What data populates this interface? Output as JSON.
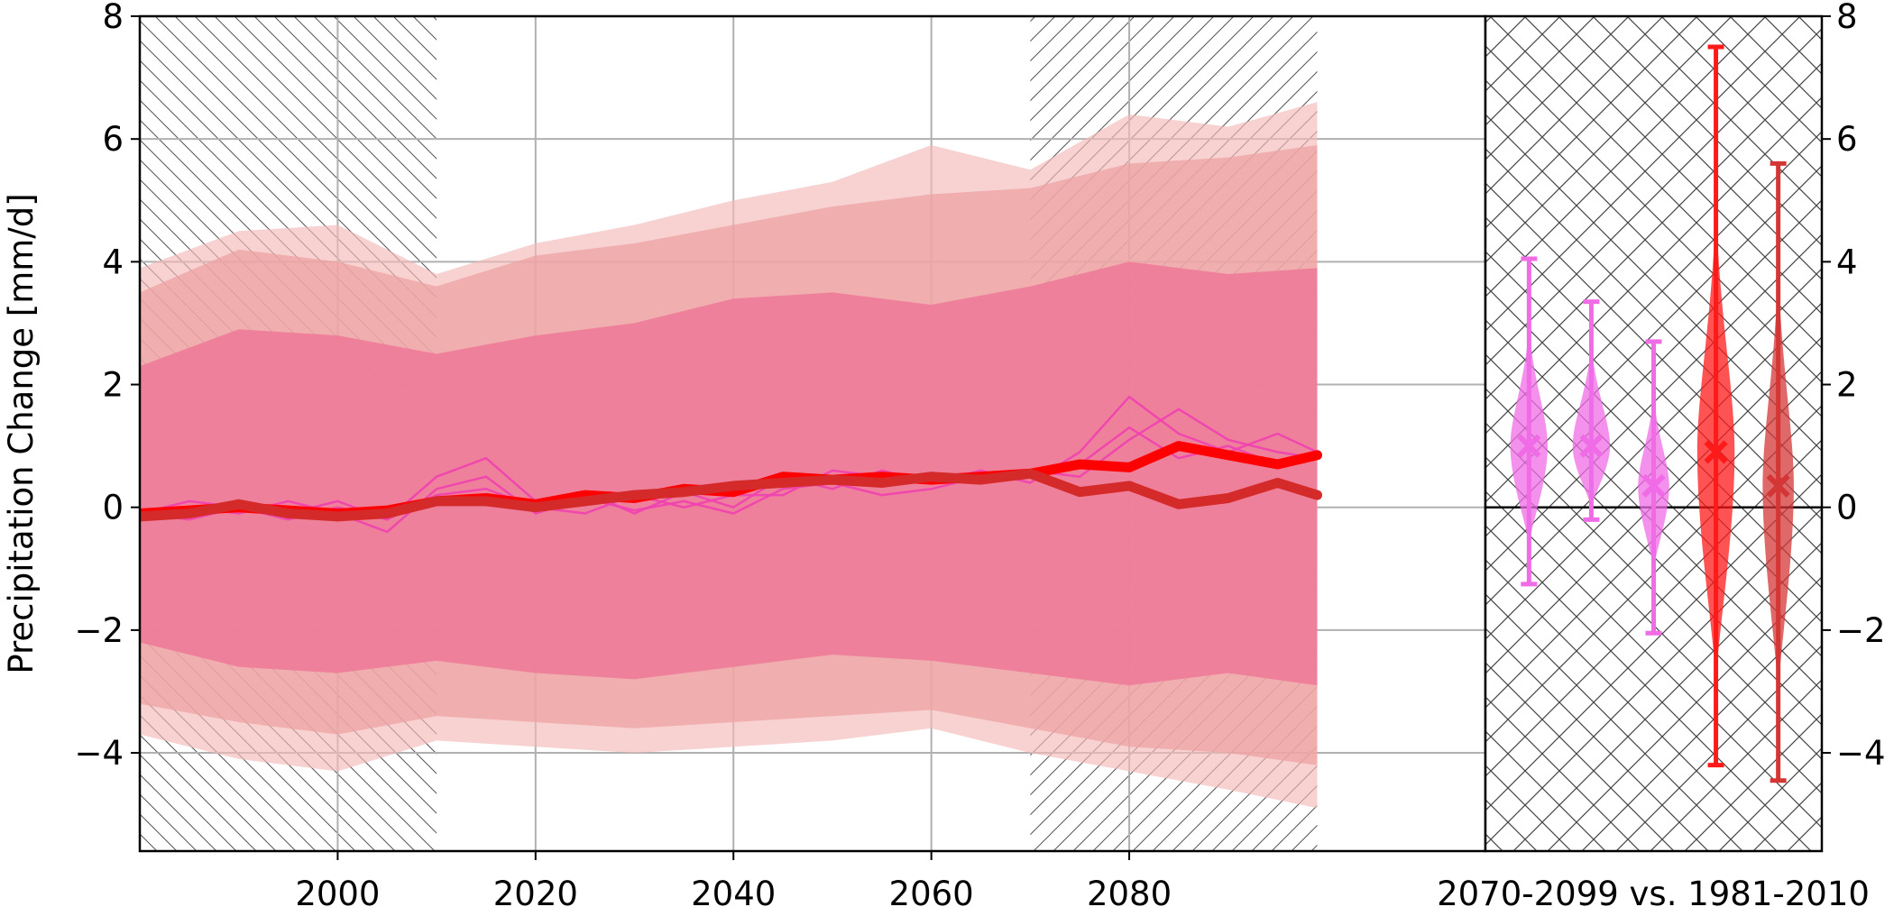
{
  "chart_data": [
    {
      "type": "line",
      "title": "",
      "xlabel": "",
      "ylabel": "Precipitation Change [mm/d]",
      "xlim": [
        1980,
        2116
      ],
      "ylim": [
        -5.6,
        8
      ],
      "xticks": [
        2000,
        2020,
        2040,
        2060,
        2080
      ],
      "xtick_labels": [
        "2000",
        "2020",
        "2040",
        "2060",
        "2080"
      ],
      "yticks": [
        -4,
        -2,
        0,
        2,
        4,
        6,
        8
      ],
      "ytick_labels": [
        "−4",
        "−2",
        "0",
        "2",
        "4",
        "6",
        "8"
      ],
      "grid": true,
      "hatched_periods": [
        [
          1980,
          2010
        ],
        [
          2070,
          2099
        ]
      ],
      "colors": {
        "band_outer": "#f4b8b8",
        "band_mid": "#eea0a0",
        "band_inner": "#ee7898",
        "band_magenta": "#f48ac8",
        "mean_red": "#ff0000",
        "mean_darkred": "#d42a2a",
        "thin_magenta": "#f040b0"
      },
      "series": [
        {
          "name": "Model spread (outer)",
          "kind": "band",
          "color_key": "band_outer",
          "opacity": 0.65,
          "x": [
            1980,
            1990,
            2000,
            2010,
            2020,
            2030,
            2040,
            2050,
            2060,
            2070,
            2080,
            2090,
            2099
          ],
          "upper": [
            3.9,
            4.5,
            4.6,
            3.8,
            4.3,
            4.6,
            5.0,
            5.3,
            5.9,
            5.5,
            6.4,
            6.2,
            6.6
          ],
          "lower": [
            -3.7,
            -4.1,
            -4.3,
            -3.8,
            -3.9,
            -4.0,
            -3.9,
            -3.8,
            -3.6,
            -4.0,
            -4.3,
            -4.6,
            -4.9
          ]
        },
        {
          "name": "Model spread (middle)",
          "kind": "band",
          "color_key": "band_mid",
          "opacity": 0.7,
          "x": [
            1980,
            1990,
            2000,
            2010,
            2020,
            2030,
            2040,
            2050,
            2060,
            2070,
            2080,
            2090,
            2099
          ],
          "upper": [
            3.5,
            4.2,
            4.0,
            3.6,
            4.1,
            4.3,
            4.6,
            4.9,
            5.1,
            5.2,
            5.6,
            5.7,
            5.9
          ],
          "lower": [
            -3.2,
            -3.5,
            -3.7,
            -3.4,
            -3.5,
            -3.6,
            -3.5,
            -3.4,
            -3.3,
            -3.6,
            -3.9,
            -4.0,
            -4.2
          ]
        },
        {
          "name": "Model spread (inner)",
          "kind": "band",
          "color_key": "band_inner",
          "opacity": 0.85,
          "x": [
            1980,
            1990,
            2000,
            2010,
            2020,
            2030,
            2040,
            2050,
            2060,
            2070,
            2080,
            2090,
            2099
          ],
          "upper": [
            2.3,
            2.9,
            2.8,
            2.5,
            2.8,
            3.0,
            3.4,
            3.5,
            3.3,
            3.6,
            4.0,
            3.8,
            3.9
          ],
          "lower": [
            -2.2,
            -2.6,
            -2.7,
            -2.5,
            -2.7,
            -2.8,
            -2.6,
            -2.4,
            -2.5,
            -2.7,
            -2.9,
            -2.7,
            -2.9
          ]
        },
        {
          "name": "Mean (red)",
          "kind": "line",
          "color_key": "mean_red",
          "width": 11,
          "x": [
            1980,
            1985,
            1990,
            1995,
            2000,
            2005,
            2010,
            2015,
            2020,
            2025,
            2030,
            2035,
            2040,
            2045,
            2050,
            2055,
            2060,
            2065,
            2070,
            2075,
            2080,
            2085,
            2090,
            2095,
            2099
          ],
          "y": [
            -0.1,
            -0.05,
            0.0,
            -0.05,
            -0.1,
            -0.05,
            0.1,
            0.15,
            0.05,
            0.2,
            0.15,
            0.3,
            0.25,
            0.5,
            0.45,
            0.5,
            0.45,
            0.5,
            0.55,
            0.7,
            0.65,
            1.0,
            0.85,
            0.7,
            0.85
          ]
        },
        {
          "name": "Mean (dark red)",
          "kind": "line",
          "color_key": "mean_darkred",
          "width": 11,
          "x": [
            1980,
            1985,
            1990,
            1995,
            2000,
            2005,
            2010,
            2015,
            2020,
            2025,
            2030,
            2035,
            2040,
            2045,
            2050,
            2055,
            2060,
            2065,
            2070,
            2075,
            2080,
            2085,
            2090,
            2095,
            2099
          ],
          "y": [
            -0.15,
            -0.1,
            0.05,
            -0.1,
            -0.15,
            -0.1,
            0.1,
            0.1,
            0.0,
            0.1,
            0.2,
            0.25,
            0.35,
            0.4,
            0.45,
            0.4,
            0.5,
            0.45,
            0.55,
            0.25,
            0.35,
            0.05,
            0.15,
            0.4,
            0.2
          ]
        },
        {
          "name": "Single model A",
          "kind": "line",
          "color_key": "thin_magenta",
          "width": 2.5,
          "x": [
            1980,
            1985,
            1990,
            1995,
            2000,
            2005,
            2010,
            2015,
            2020,
            2025,
            2030,
            2035,
            2040,
            2045,
            2050,
            2055,
            2060,
            2065,
            2070,
            2075,
            2080,
            2085,
            2090,
            2095,
            2099
          ],
          "y": [
            -0.1,
            -0.2,
            0.0,
            -0.1,
            0.1,
            -0.2,
            0.5,
            0.8,
            0.1,
            0.25,
            -0.1,
            0.25,
            0.0,
            0.5,
            0.3,
            0.6,
            0.4,
            0.6,
            0.4,
            0.9,
            1.8,
            1.2,
            0.9,
            1.2,
            0.9
          ]
        },
        {
          "name": "Single model B",
          "kind": "line",
          "color_key": "thin_magenta",
          "width": 2.5,
          "x": [
            1980,
            1985,
            1990,
            1995,
            2000,
            2005,
            2010,
            2015,
            2020,
            2025,
            2030,
            2035,
            2040,
            2045,
            2050,
            2055,
            2060,
            2065,
            2070,
            2075,
            2080,
            2085,
            2090,
            2095,
            2099
          ],
          "y": [
            -0.2,
            0.0,
            -0.1,
            0.1,
            -0.1,
            -0.4,
            0.3,
            0.5,
            -0.1,
            0.15,
            -0.05,
            0.1,
            -0.1,
            0.3,
            0.4,
            0.2,
            0.3,
            0.5,
            0.6,
            0.5,
            1.1,
            1.6,
            1.1,
            0.9,
            0.8
          ]
        },
        {
          "name": "Single model C",
          "kind": "line",
          "color_key": "thin_magenta",
          "width": 2.5,
          "x": [
            1980,
            1985,
            1990,
            1995,
            2000,
            2005,
            2010,
            2015,
            2020,
            2025,
            2030,
            2035,
            2040,
            2045,
            2050,
            2055,
            2060,
            2065,
            2070,
            2075,
            2080,
            2085,
            2090,
            2095,
            2099
          ],
          "y": [
            -0.1,
            0.1,
            0.0,
            -0.2,
            0.0,
            -0.2,
            0.2,
            0.3,
            0.0,
            -0.1,
            0.2,
            0.0,
            0.2,
            0.2,
            0.6,
            0.5,
            0.5,
            0.4,
            0.5,
            0.7,
            1.3,
            0.8,
            1.0,
            0.7,
            0.9
          ]
        }
      ]
    },
    {
      "type": "violin",
      "title": "",
      "xlabel": "2070-2099 vs. 1981-2010",
      "ylabel": "",
      "ylim": [
        -5.6,
        8
      ],
      "yticks": [
        -4,
        -2,
        0,
        2,
        4,
        6,
        8
      ],
      "ytick_labels": [
        "−4",
        "−2",
        "0",
        "2",
        "4",
        "6",
        "8"
      ],
      "grid": false,
      "hatch": "crosshatch",
      "zero_line": 0,
      "violins": [
        {
          "name": "Violin 1",
          "color": "#f06ce6",
          "min": -1.25,
          "max": 4.05,
          "median": 1.0,
          "body_low": -0.6,
          "body_high": 3.0,
          "max_halfwidth": 0.3
        },
        {
          "name": "Violin 2",
          "color": "#f06ce6",
          "min": -0.2,
          "max": 3.35,
          "median": 1.0,
          "body_low": 0.0,
          "body_high": 2.7,
          "max_halfwidth": 0.3
        },
        {
          "name": "Violin 3",
          "color": "#f06ce6",
          "min": -2.05,
          "max": 2.7,
          "median": 0.35,
          "body_low": -1.0,
          "body_high": 1.9,
          "max_halfwidth": 0.25
        },
        {
          "name": "Violin 4",
          "color": "#ff1a1a",
          "min": -4.2,
          "max": 7.5,
          "median": 0.9,
          "body_low": -2.8,
          "body_high": 5.0,
          "max_halfwidth": 0.3
        },
        {
          "name": "Violin 5",
          "color": "#d43535",
          "min": -4.45,
          "max": 5.6,
          "median": 0.35,
          "body_low": -3.0,
          "body_high": 4.0,
          "max_halfwidth": 0.25
        }
      ]
    }
  ]
}
